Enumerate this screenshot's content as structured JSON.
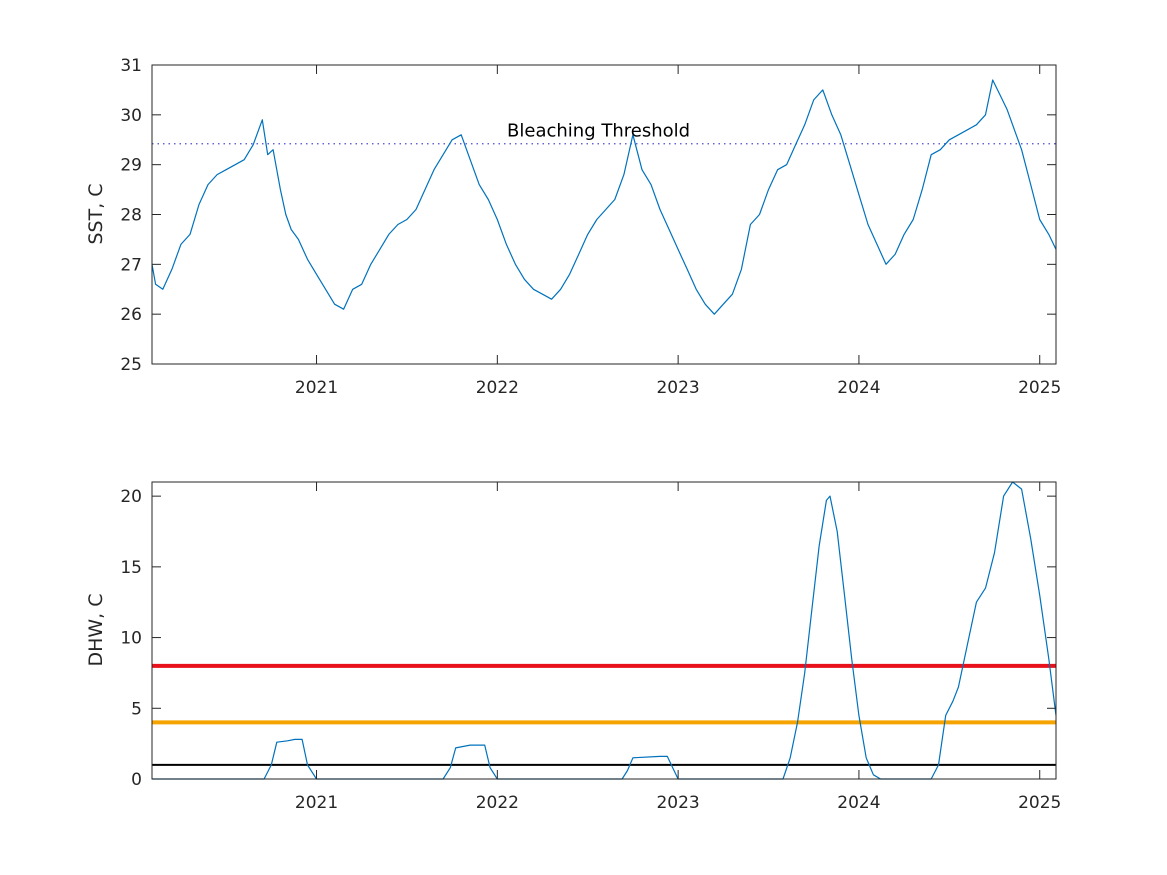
{
  "chart_data": [
    {
      "type": "line",
      "ylabel": "SST, C",
      "xlabel": "",
      "xlim": [
        2020.09,
        2025.09
      ],
      "ylim": [
        25,
        31
      ],
      "xticks": [
        2021,
        2022,
        2023,
        2024,
        2025
      ],
      "xtick_labels": [
        "2021",
        "2022",
        "2023",
        "2024",
        "2025"
      ],
      "yticks": [
        25,
        26,
        27,
        28,
        29,
        30,
        31
      ],
      "ytick_labels": [
        "25",
        "26",
        "27",
        "28",
        "29",
        "30",
        "31"
      ],
      "grid": false,
      "series": [
        {
          "color": "#0072bd",
          "x": [
            2020.09,
            2020.11,
            2020.15,
            2020.2,
            2020.25,
            2020.3,
            2020.35,
            2020.4,
            2020.45,
            2020.5,
            2020.55,
            2020.6,
            2020.65,
            2020.7,
            2020.73,
            2020.76,
            2020.8,
            2020.83,
            2020.86,
            2020.9,
            2020.95,
            2021.0,
            2021.05,
            2021.1,
            2021.15,
            2021.2,
            2021.25,
            2021.3,
            2021.35,
            2021.4,
            2021.45,
            2021.5,
            2021.55,
            2021.6,
            2021.65,
            2021.7,
            2021.75,
            2021.8,
            2021.85,
            2021.9,
            2021.95,
            2022.0,
            2022.05,
            2022.1,
            2022.15,
            2022.2,
            2022.25,
            2022.3,
            2022.35,
            2022.4,
            2022.45,
            2022.5,
            2022.55,
            2022.6,
            2022.65,
            2022.7,
            2022.75,
            2022.8,
            2022.85,
            2022.9,
            2022.95,
            2023.0,
            2023.05,
            2023.1,
            2023.15,
            2023.2,
            2023.25,
            2023.3,
            2023.35,
            2023.4,
            2023.45,
            2023.5,
            2023.55,
            2023.6,
            2023.65,
            2023.7,
            2023.75,
            2023.8,
            2023.85,
            2023.9,
            2023.95,
            2024.0,
            2024.05,
            2024.1,
            2024.15,
            2024.2,
            2024.25,
            2024.3,
            2024.35,
            2024.4,
            2024.45,
            2024.5,
            2024.55,
            2024.6,
            2024.65,
            2024.7,
            2024.74,
            2024.78,
            2024.82,
            2024.86,
            2024.9,
            2024.95,
            2025.0,
            2025.05,
            2025.09
          ],
          "y": [
            27.0,
            26.6,
            26.5,
            26.9,
            27.4,
            27.6,
            28.2,
            28.6,
            28.8,
            28.9,
            29.0,
            29.1,
            29.4,
            29.9,
            29.2,
            29.3,
            28.5,
            28.0,
            27.7,
            27.5,
            27.1,
            26.8,
            26.5,
            26.2,
            26.1,
            26.5,
            26.6,
            27.0,
            27.3,
            27.6,
            27.8,
            27.9,
            28.1,
            28.5,
            28.9,
            29.2,
            29.5,
            29.6,
            29.1,
            28.6,
            28.3,
            27.9,
            27.4,
            27.0,
            26.7,
            26.5,
            26.4,
            26.3,
            26.5,
            26.8,
            27.2,
            27.6,
            27.9,
            28.1,
            28.3,
            28.8,
            29.6,
            28.9,
            28.6,
            28.1,
            27.7,
            27.3,
            26.9,
            26.5,
            26.2,
            26.0,
            26.2,
            26.4,
            26.9,
            27.8,
            28.0,
            28.5,
            28.9,
            29.0,
            29.4,
            29.8,
            30.3,
            30.5,
            30.0,
            29.6,
            29.0,
            28.4,
            27.8,
            27.4,
            27.0,
            27.2,
            27.6,
            27.9,
            28.5,
            29.2,
            29.3,
            29.5,
            29.6,
            29.7,
            29.8,
            30.0,
            30.7,
            30.4,
            30.1,
            29.7,
            29.3,
            28.6,
            27.9,
            27.6,
            27.3
          ]
        }
      ],
      "reference_lines": [
        {
          "y": 29.42,
          "color": "#4a4ad6",
          "style": "dotted",
          "label": "Bleaching Threshold"
        }
      ]
    },
    {
      "type": "line",
      "ylabel": "DHW, C",
      "xlabel": "",
      "xlim": [
        2020.09,
        2025.09
      ],
      "ylim": [
        0,
        21
      ],
      "xticks": [
        2021,
        2022,
        2023,
        2024,
        2025
      ],
      "xtick_labels": [
        "2021",
        "2022",
        "2023",
        "2024",
        "2025"
      ],
      "yticks": [
        0,
        5,
        10,
        15,
        20
      ],
      "ytick_labels": [
        "0",
        "5",
        "10",
        "15",
        "20"
      ],
      "grid": false,
      "series": [
        {
          "color": "#0072bd",
          "x": [
            2020.09,
            2020.71,
            2020.75,
            2020.78,
            2020.84,
            2020.88,
            2020.92,
            2020.95,
            2021.0,
            2021.7,
            2021.74,
            2021.77,
            2021.85,
            2021.89,
            2021.93,
            2021.96,
            2022.0,
            2022.69,
            2022.72,
            2022.75,
            2022.9,
            2022.94,
            2022.97,
            2023.0,
            2023.58,
            2023.62,
            2023.66,
            2023.7,
            2023.74,
            2023.78,
            2023.82,
            2023.84,
            2023.88,
            2023.92,
            2023.96,
            2024.0,
            2024.04,
            2024.08,
            2024.12,
            2024.4,
            2024.44,
            2024.48,
            2024.52,
            2024.55,
            2024.6,
            2024.65,
            2024.7,
            2024.75,
            2024.8,
            2024.85,
            2024.9,
            2024.95,
            2025.0,
            2025.05,
            2025.09
          ],
          "y": [
            0,
            0,
            1.0,
            2.6,
            2.7,
            2.8,
            2.8,
            1.0,
            0,
            0,
            0.8,
            2.2,
            2.4,
            2.4,
            2.4,
            0.8,
            0,
            0,
            0.6,
            1.5,
            1.6,
            1.6,
            0.8,
            0,
            0,
            1.5,
            4.0,
            7.5,
            12.0,
            16.5,
            19.7,
            20.0,
            17.5,
            13.0,
            8.5,
            4.5,
            1.5,
            0.3,
            0,
            0,
            1.0,
            4.5,
            5.5,
            6.5,
            9.5,
            12.5,
            13.5,
            16.0,
            20.0,
            21.0,
            20.5,
            17.0,
            13.0,
            8.5,
            4.5
          ]
        }
      ],
      "reference_lines": [
        {
          "y": 8,
          "color": "#e8101a",
          "style": "solid"
        },
        {
          "y": 4,
          "color": "#f5a300",
          "style": "solid"
        },
        {
          "y": 1,
          "color": "#000000",
          "style": "solid"
        }
      ]
    }
  ]
}
